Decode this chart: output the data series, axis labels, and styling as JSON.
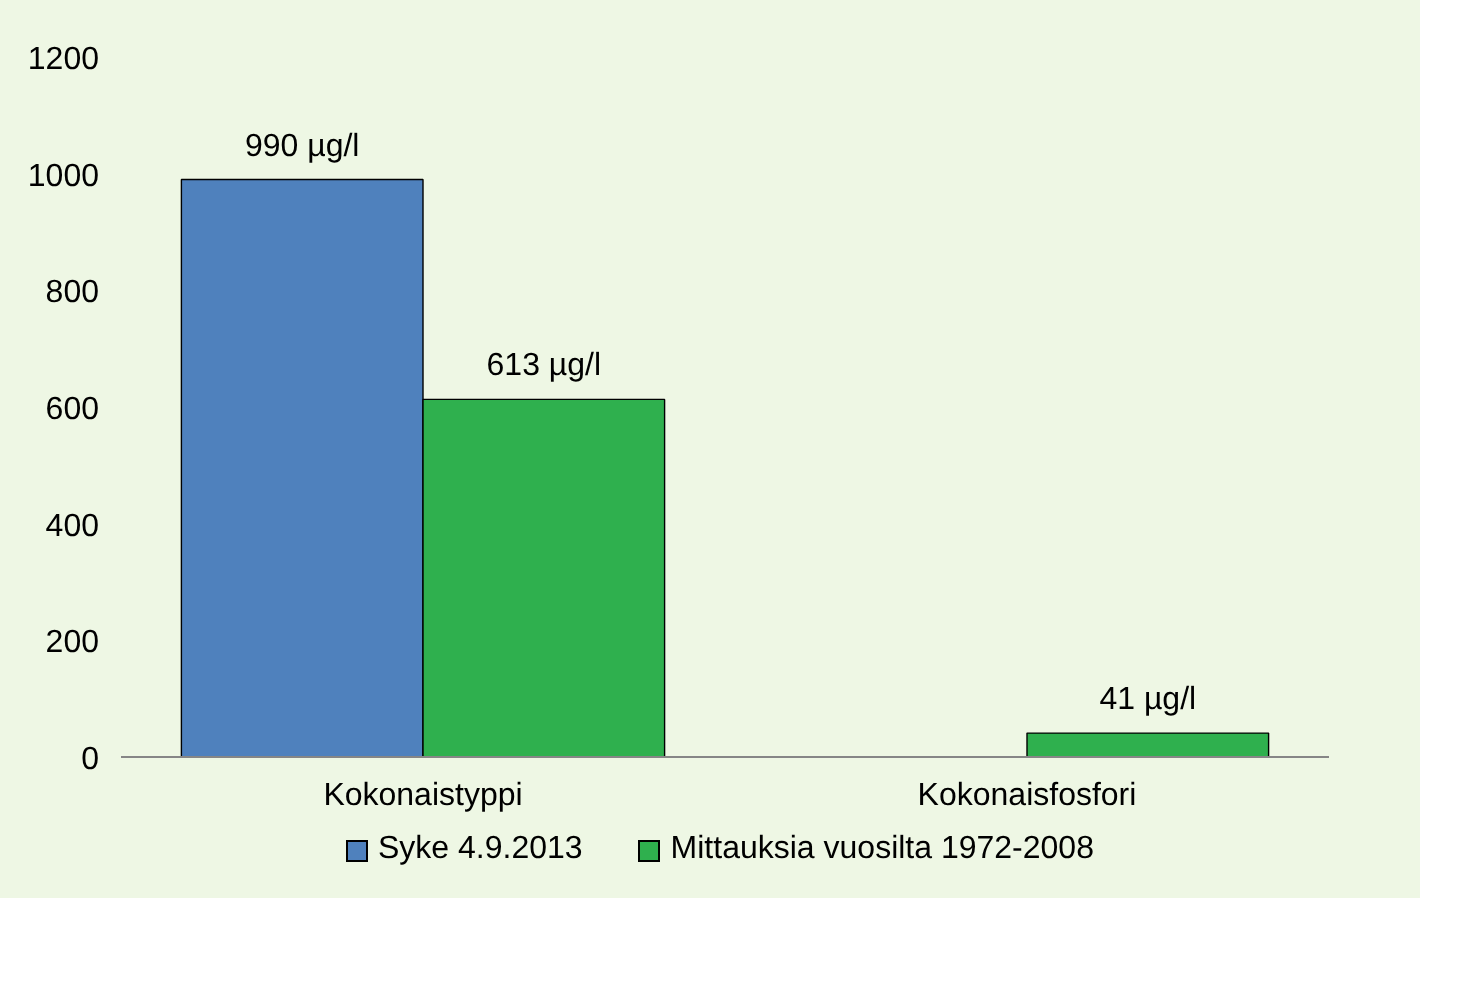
{
  "chart_data": {
    "type": "bar",
    "categories": [
      "Kokonaistyppi",
      "Kokonaisfosfori"
    ],
    "series": [
      {
        "name": "Syke 4.9.2013",
        "color": "#4f81bd",
        "values": [
          990,
          null
        ],
        "value_labels": [
          "990 µg/l",
          null
        ]
      },
      {
        "name": "Mittauksia vuosilta 1972-2008",
        "color": "#2fb04e",
        "values": [
          613,
          41
        ],
        "value_labels": [
          "613 µg/l",
          "41 µg/l"
        ]
      }
    ],
    "ylim": [
      0,
      1200
    ],
    "yticks": [
      0,
      200,
      400,
      600,
      800,
      1000,
      1200
    ],
    "grid": false,
    "legend": "bottom"
  }
}
